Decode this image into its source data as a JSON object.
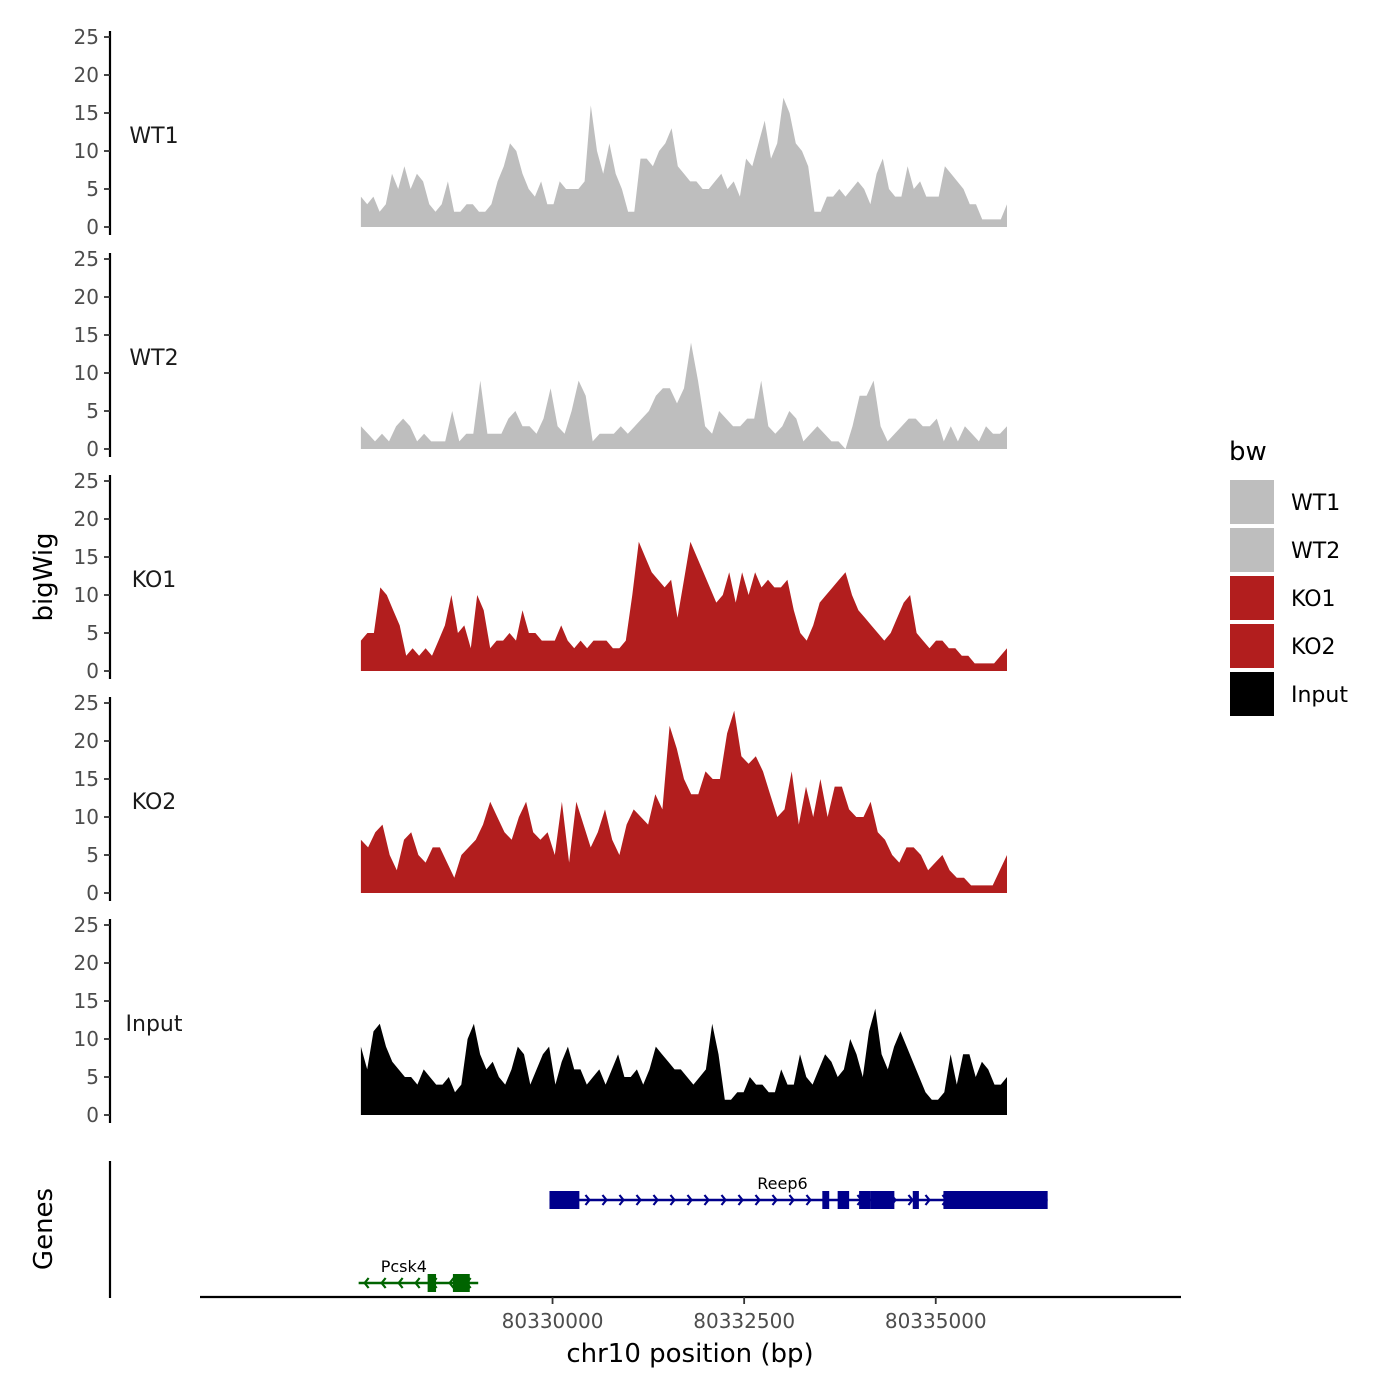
{
  "chart_data": {
    "type": "area",
    "ylabel": "bigWig",
    "xlabel": "chr10 position (bp)",
    "genes_axis_label": "Genes",
    "xlim": [
      80325400,
      80338200
    ],
    "ylim": [
      0,
      25
    ],
    "y_ticks": [
      "0",
      "5",
      "10",
      "15",
      "20",
      "25"
    ],
    "x_ticks": [
      {
        "value": 80330000,
        "label": "80330000"
      },
      {
        "value": 80332500,
        "label": "80332500"
      },
      {
        "value": 80335000,
        "label": "80335000"
      }
    ],
    "legend": {
      "title": "bw",
      "position": "right",
      "entries": [
        {
          "label": "WT1",
          "color": "#bebebe"
        },
        {
          "label": "WT2",
          "color": "#bebebe"
        },
        {
          "label": "KO1",
          "color": "#b21e1e"
        },
        {
          "label": "KO2",
          "color": "#b21e1e"
        },
        {
          "label": "Input",
          "color": "#000000"
        }
      ]
    },
    "series": [
      {
        "name": "WT1",
        "color": "#bebebe",
        "x_start": 80327500,
        "x_end": 80335930,
        "values": [
          4,
          3,
          4,
          2,
          3,
          7,
          5,
          8,
          5,
          7,
          6,
          3,
          2,
          3,
          6,
          2,
          2,
          3,
          3,
          2,
          2,
          3,
          6,
          8,
          11,
          10,
          7,
          5,
          4,
          6,
          3,
          3,
          6,
          5,
          5,
          5,
          6,
          16,
          10,
          7,
          11,
          7,
          5,
          2,
          2,
          9,
          9,
          8,
          10,
          11,
          13,
          8,
          7,
          6,
          6,
          5,
          5,
          6,
          7,
          5,
          6,
          4,
          9,
          8,
          11,
          14,
          9,
          11,
          17,
          15,
          11,
          10,
          8,
          2,
          2,
          4,
          4,
          5,
          4,
          5,
          6,
          5,
          3,
          7,
          9,
          5,
          4,
          4,
          8,
          5,
          6,
          4,
          4,
          4,
          8,
          7,
          6,
          5,
          3,
          3,
          1,
          1,
          1,
          1,
          3
        ]
      },
      {
        "name": "WT2",
        "color": "#bebebe",
        "x_start": 80327500,
        "x_end": 80335930,
        "values": [
          3,
          2,
          1,
          2,
          1,
          3,
          4,
          3,
          1,
          2,
          1,
          1,
          1,
          5,
          1,
          2,
          2,
          9,
          2,
          2,
          2,
          4,
          5,
          3,
          3,
          2,
          4,
          8,
          3,
          2,
          5,
          9,
          7,
          1,
          2,
          2,
          2,
          3,
          2,
          3,
          4,
          5,
          7,
          8,
          8,
          6,
          8,
          14,
          9,
          3,
          2,
          5,
          4,
          3,
          3,
          4,
          4,
          9,
          3,
          2,
          3,
          5,
          4,
          1,
          2,
          3,
          2,
          1,
          1,
          0,
          3,
          7,
          7,
          9,
          3,
          1,
          2,
          3,
          4,
          4,
          3,
          3,
          4,
          1,
          3,
          1,
          3,
          2,
          1,
          3,
          2,
          2,
          3
        ]
      },
      {
        "name": "KO1",
        "color": "#b21e1e",
        "x_start": 80327500,
        "x_end": 80335930,
        "values": [
          4,
          5,
          5,
          11,
          10,
          8,
          6,
          2,
          3,
          2,
          3,
          2,
          4,
          6,
          10,
          5,
          6,
          3,
          10,
          8,
          3,
          4,
          4,
          5,
          4,
          8,
          5,
          5,
          4,
          4,
          4,
          6,
          4,
          3,
          4,
          3,
          4,
          4,
          4,
          3,
          3,
          4,
          10,
          17,
          15,
          13,
          12,
          11,
          12,
          7,
          12,
          17,
          15,
          13,
          11,
          9,
          10,
          13,
          9,
          13,
          10,
          13,
          11,
          12,
          11,
          11,
          12,
          8,
          5,
          4,
          6,
          9,
          10,
          11,
          12,
          13,
          10,
          8,
          7,
          6,
          5,
          4,
          5,
          7,
          9,
          10,
          5,
          4,
          3,
          4,
          4,
          3,
          3,
          2,
          2,
          1,
          1,
          1,
          1,
          2,
          3
        ]
      },
      {
        "name": "KO2",
        "color": "#b21e1e",
        "x_start": 80327500,
        "x_end": 80335930,
        "values": [
          7,
          6,
          8,
          9,
          5,
          3,
          7,
          8,
          5,
          4,
          6,
          6,
          4,
          2,
          5,
          6,
          7,
          9,
          12,
          10,
          8,
          7,
          10,
          12,
          8,
          7,
          8,
          5,
          12,
          4,
          12,
          9,
          6,
          8,
          11,
          7,
          5,
          9,
          11,
          10,
          9,
          13,
          11,
          22,
          19,
          15,
          13,
          13,
          16,
          15,
          15,
          21,
          24,
          18,
          17,
          18,
          16,
          13,
          10,
          11,
          16,
          9,
          14,
          10,
          15,
          10,
          14,
          14,
          11,
          10,
          10,
          12,
          8,
          7,
          5,
          4,
          6,
          6,
          5,
          3,
          4,
          5,
          3,
          2,
          2,
          1,
          1,
          1,
          1,
          3,
          5
        ]
      },
      {
        "name": "Input",
        "color": "#000000",
        "x_start": 80327500,
        "x_end": 80335930,
        "values": [
          9,
          6,
          11,
          12,
          9,
          7,
          6,
          5,
          5,
          4,
          6,
          5,
          4,
          4,
          5,
          3,
          4,
          10,
          12,
          8,
          6,
          7,
          5,
          4,
          6,
          9,
          8,
          4,
          6,
          8,
          9,
          4,
          7,
          9,
          6,
          6,
          4,
          5,
          6,
          4,
          6,
          8,
          5,
          5,
          6,
          4,
          6,
          9,
          8,
          7,
          6,
          6,
          5,
          4,
          5,
          6,
          12,
          8,
          2,
          2,
          3,
          3,
          5,
          4,
          4,
          3,
          3,
          6,
          4,
          4,
          8,
          5,
          4,
          6,
          8,
          7,
          5,
          6,
          10,
          8,
          5,
          11,
          14,
          8,
          6,
          9,
          11,
          9,
          7,
          5,
          3,
          2,
          2,
          3,
          8,
          4,
          8,
          8,
          5,
          7,
          6,
          4,
          4,
          5
        ]
      }
    ],
    "genes": [
      {
        "name": "Reep6",
        "color": "#00008b",
        "strand": "+",
        "row": "top",
        "start": 80329960,
        "end": 80336460,
        "exons": [
          [
            80329960,
            80330350
          ],
          [
            80333520,
            80333610
          ],
          [
            80333720,
            80333870
          ],
          [
            80334000,
            80334150
          ],
          [
            80334150,
            80334460
          ],
          [
            80334700,
            80334780
          ],
          [
            80335100,
            80336460
          ]
        ]
      },
      {
        "name": "Pcsk4",
        "color": "#006400",
        "strand": "-",
        "row": "bottom",
        "start": 80327470,
        "end": 80329030,
        "exons": [
          [
            80328370,
            80328480
          ],
          [
            80328700,
            80328920
          ]
        ]
      }
    ]
  }
}
